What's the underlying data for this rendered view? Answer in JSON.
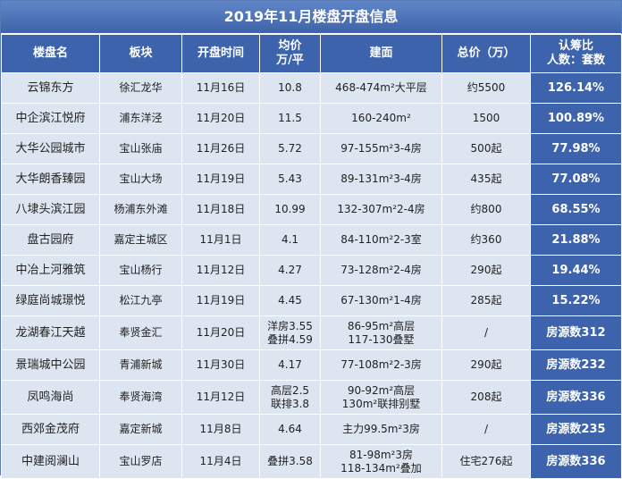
{
  "title": "2019年11月楼盘开盘信息",
  "headers": {
    "name": "楼盘名",
    "area": "板块",
    "date": "开盘时间",
    "price_line1": "均价",
    "price_line2": "万/平",
    "floor": "建面",
    "total": "总价（万）",
    "ratio_line1": "认筹比",
    "ratio_line2": "人数：套数"
  },
  "rows": [
    {
      "name": "云锦东方",
      "area": "徐汇龙华",
      "date": "11月16日",
      "price1": "10.8",
      "price2": "",
      "floor1": "468-474m²大平层",
      "floor2": "",
      "total": "约5500",
      "ratio": "126.14%"
    },
    {
      "name": "中企滨江悦府",
      "area": "浦东洋泾",
      "date": "11月20日",
      "price1": "11.5",
      "price2": "",
      "floor1": "160-240m²",
      "floor2": "",
      "total": "1500",
      "ratio": "100.89%"
    },
    {
      "name": "大华公园城市",
      "area": "宝山张庙",
      "date": "11月26日",
      "price1": "5.72",
      "price2": "",
      "floor1": "97-155m²3-4房",
      "floor2": "",
      "total": "500起",
      "ratio": "77.98%"
    },
    {
      "name": "大华朗香臻园",
      "area": "宝山大场",
      "date": "11月19日",
      "price1": "5.43",
      "price2": "",
      "floor1": "89-131m²3-4房",
      "floor2": "",
      "total": "435起",
      "ratio": "77.08%"
    },
    {
      "name": "八埭头滨江园",
      "area": "杨浦东外滩",
      "date": "11月18日",
      "price1": "10.99",
      "price2": "",
      "floor1": "132-307m²2-4房",
      "floor2": "",
      "total": "约800",
      "ratio": "68.55%"
    },
    {
      "name": "盘古园府",
      "area": "嘉定主城区",
      "date": "11月1日",
      "price1": "4.1",
      "price2": "",
      "floor1": "84-110m²2-3室",
      "floor2": "",
      "total": "约360",
      "ratio": "21.88%"
    },
    {
      "name": "中冶上河雅筑",
      "area": "宝山杨行",
      "date": "11月12日",
      "price1": "4.27",
      "price2": "",
      "floor1": "73-128m²2-4房",
      "floor2": "",
      "total": "290起",
      "ratio": "19.44%"
    },
    {
      "name": "绿庭尚城璟悦",
      "area": "松江九亭",
      "date": "11月19日",
      "price1": "4.45",
      "price2": "",
      "floor1": "67-130m²1-4房",
      "floor2": "",
      "total": "285起",
      "ratio": "15.22%"
    },
    {
      "name": "龙湖春江天越",
      "area": "奉贤金汇",
      "date": "11月20日",
      "price1": "洋房3.55",
      "price2": "叠拼4.59",
      "floor1": "86-95m²高层",
      "floor2": "117-130叠墅",
      "total": "/",
      "ratio": "房源数312"
    },
    {
      "name": "景瑞城中公园",
      "area": "青浦新城",
      "date": "11月30日",
      "price1": "4.17",
      "price2": "",
      "floor1": "77-108m²2-3房",
      "floor2": "",
      "total": "290起",
      "ratio": "房源数232"
    },
    {
      "name": "凤鸣海尚",
      "area": "奉贤海湾",
      "date": "11月12日",
      "price1": "高层2.5",
      "price2": "联排3.8",
      "floor1": "90-92m²高层",
      "floor2": "130m²联排别墅",
      "total": "208起",
      "ratio": "房源数336"
    },
    {
      "name": "西郊金茂府",
      "area": "嘉定新城",
      "date": "11月8日",
      "price1": "4.64",
      "price2": "",
      "floor1": "主力99.5m²3房",
      "floor2": "",
      "total": "/",
      "ratio": "房源数235"
    },
    {
      "name": "中建阅澜山",
      "area": "宝山罗店",
      "date": "11月4日",
      "price1": "叠拼3.58",
      "price2": "",
      "floor1": "81-98m²3房",
      "floor2": "118-134m²叠加",
      "total": "住宅276起",
      "ratio": "房源数336"
    }
  ]
}
